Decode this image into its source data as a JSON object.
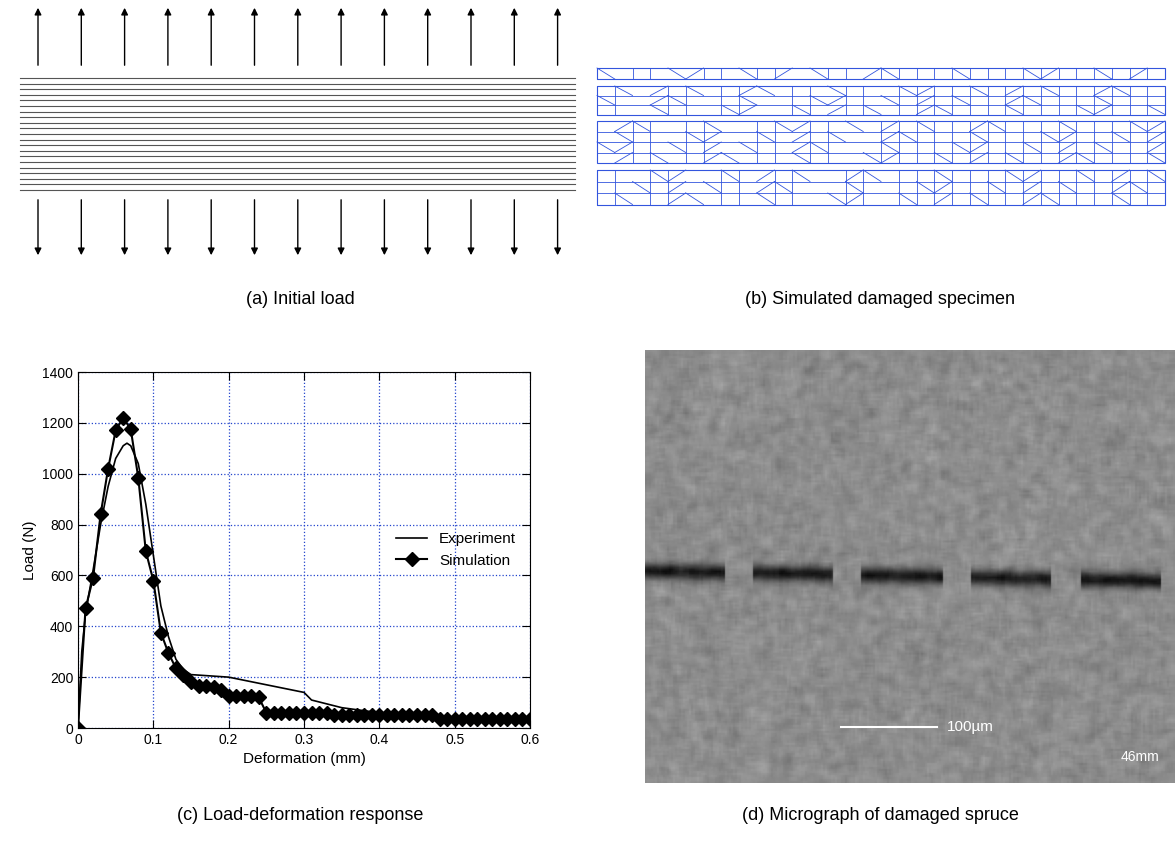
{
  "panels": {
    "a": "(a) Initial load",
    "b": "(b) Simulated damaged specimen",
    "c": "(c) Load-deformation response",
    "d": "(d) Micrograph of damaged spruce"
  },
  "micrograph": {
    "scale_bar": "100µm",
    "magnification": "46mm"
  },
  "chart_data": {
    "type": "line",
    "xlabel": "Deformation (mm)",
    "ylabel": "Load (N)",
    "xlim": [
      0,
      0.6
    ],
    "xticks": [
      0,
      0.1,
      0.2,
      0.3,
      0.4,
      0.5,
      0.6
    ],
    "ylim": [
      0,
      1400
    ],
    "yticks": [
      0,
      200,
      400,
      600,
      800,
      1000,
      1200,
      1400
    ],
    "grid": true,
    "legend": "center right",
    "series": [
      {
        "name": "Experiment",
        "color": "#000000",
        "line_style": "solid",
        "x": [
          0,
          0.005,
          0.01,
          0.02,
          0.03,
          0.04,
          0.05,
          0.06,
          0.065,
          0.07,
          0.08,
          0.09,
          0.1,
          0.11,
          0.12,
          0.13,
          0.14,
          0.15,
          0.2,
          0.25,
          0.3,
          0.31,
          0.35,
          0.4,
          0.45,
          0.5,
          0.6
        ],
        "values": [
          0,
          300,
          450,
          620,
          800,
          950,
          1060,
          1110,
          1120,
          1110,
          1040,
          880,
          680,
          480,
          360,
          270,
          230,
          210,
          200,
          170,
          140,
          110,
          80,
          60,
          50,
          40,
          30
        ]
      },
      {
        "name": "Simulation",
        "color": "#000000",
        "line_style": "solid",
        "marker": "diamond",
        "x": [
          0,
          0.01,
          0.02,
          0.03,
          0.04,
          0.05,
          0.06,
          0.07,
          0.08,
          0.09,
          0.1,
          0.11,
          0.12,
          0.13,
          0.14,
          0.15,
          0.16,
          0.17,
          0.18,
          0.19,
          0.2,
          0.21,
          0.22,
          0.23,
          0.24,
          0.25,
          0.26,
          0.27,
          0.28,
          0.29,
          0.3,
          0.31,
          0.32,
          0.33,
          0.34,
          0.35,
          0.36,
          0.37,
          0.38,
          0.39,
          0.4,
          0.41,
          0.42,
          0.43,
          0.44,
          0.45,
          0.46,
          0.47,
          0.48,
          0.49,
          0.5,
          0.51,
          0.52,
          0.53,
          0.54,
          0.55,
          0.56,
          0.57,
          0.58,
          0.59,
          0.6
        ],
        "values": [
          0,
          470,
          590,
          840,
          1020,
          1170,
          1220,
          1175,
          985,
          695,
          580,
          375,
          295,
          235,
          210,
          180,
          165,
          165,
          160,
          150,
          125,
          125,
          125,
          125,
          120,
          60,
          60,
          60,
          60,
          60,
          60,
          60,
          60,
          60,
          50,
          50,
          50,
          50,
          50,
          50,
          50,
          50,
          50,
          50,
          50,
          50,
          50,
          50,
          35,
          35,
          35,
          35,
          35,
          35,
          35,
          35,
          35,
          35,
          35,
          35,
          35
        ]
      }
    ]
  }
}
